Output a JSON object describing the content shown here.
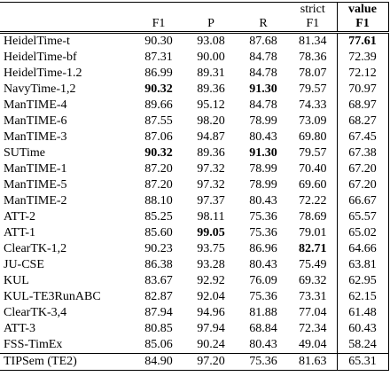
{
  "table": {
    "header": [
      [
        "",
        "",
        "",
        "",
        "strict",
        "value"
      ],
      [
        "",
        "F1",
        "P",
        "R",
        "F1",
        "F1"
      ]
    ],
    "header_bold_column": 5,
    "rows": [
      [
        "HeidelTime-t",
        "90.30",
        "93.08",
        "87.68",
        "81.34",
        "77.61"
      ],
      [
        "HeidelTime-bf",
        "87.31",
        "90.00",
        "84.78",
        "78.36",
        "72.39"
      ],
      [
        "HeidelTime-1.2",
        "86.99",
        "89.31",
        "84.78",
        "78.07",
        "72.12"
      ],
      [
        "NavyTime-1,2",
        "90.32",
        "89.36",
        "91.30",
        "79.57",
        "70.97"
      ],
      [
        "ManTIME-4",
        "89.66",
        "95.12",
        "84.78",
        "74.33",
        "68.97"
      ],
      [
        "ManTIME-6",
        "87.55",
        "98.20",
        "78.99",
        "73.09",
        "68.27"
      ],
      [
        "ManTIME-3",
        "87.06",
        "94.87",
        "80.43",
        "69.80",
        "67.45"
      ],
      [
        "SUTime",
        "90.32",
        "89.36",
        "91.30",
        "79.57",
        "67.38"
      ],
      [
        "ManTIME-1",
        "87.20",
        "97.32",
        "78.99",
        "70.40",
        "67.20"
      ],
      [
        "ManTIME-5",
        "87.20",
        "97.32",
        "78.99",
        "69.60",
        "67.20"
      ],
      [
        "ManTIME-2",
        "88.10",
        "97.37",
        "80.43",
        "72.22",
        "66.67"
      ],
      [
        "ATT-2",
        "85.25",
        "98.11",
        "75.36",
        "78.69",
        "65.57"
      ],
      [
        "ATT-1",
        "85.60",
        "99.05",
        "75.36",
        "79.01",
        "65.02"
      ],
      [
        "ClearTK-1,2",
        "90.23",
        "93.75",
        "86.96",
        "82.71",
        "64.66"
      ],
      [
        "JU-CSE",
        "86.38",
        "93.28",
        "80.43",
        "75.49",
        "63.81"
      ],
      [
        "KUL",
        "83.67",
        "92.92",
        "76.09",
        "69.32",
        "62.95"
      ],
      [
        "KUL-TE3RunABC",
        "82.87",
        "92.04",
        "75.36",
        "73.31",
        "62.15"
      ],
      [
        "ClearTK-3,4",
        "87.94",
        "94.96",
        "81.88",
        "77.04",
        "61.48"
      ],
      [
        "ATT-3",
        "80.85",
        "97.94",
        "68.84",
        "72.34",
        "60.43"
      ],
      [
        "FSS-TimEx",
        "85.06",
        "90.24",
        "80.43",
        "49.04",
        "58.24"
      ],
      [
        "TIPSem (TE2)",
        "84.90",
        "97.20",
        "75.36",
        "81.63",
        "65.31"
      ]
    ],
    "bold": [
      [
        0,
        5
      ],
      [
        3,
        1
      ],
      [
        3,
        3
      ],
      [
        7,
        1
      ],
      [
        7,
        3
      ],
      [
        12,
        2
      ],
      [
        13,
        4
      ]
    ]
  }
}
